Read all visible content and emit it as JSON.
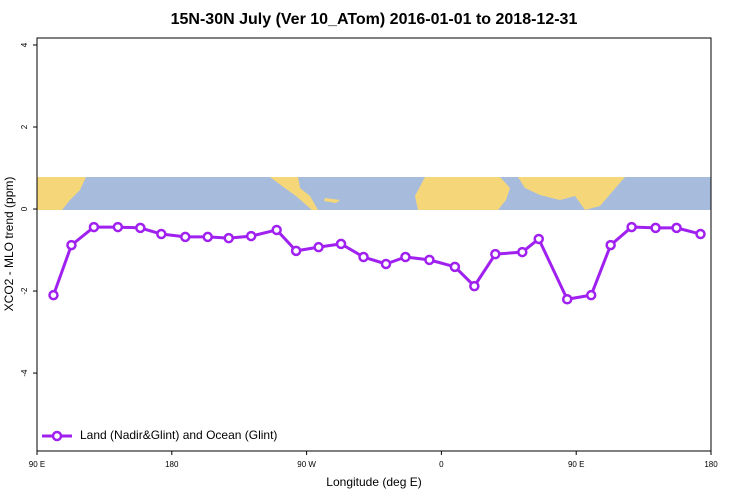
{
  "chart_data": {
    "type": "line",
    "title": "15N-30N July (Ver 10_ATom)   2016-01-01 to 2018-12-31",
    "x_label": "Longitude (deg E)",
    "y_label": "XCO2 - MLO trend (ppm)",
    "xlim": [
      90,
      540
    ],
    "ylim": [
      -5.9,
      4.17
    ],
    "xticks": [
      {
        "value": 90,
        "label": "90 E"
      },
      180,
      {
        "value": 270,
        "label": "90 W"
      },
      {
        "value": 360,
        "label": "0"
      },
      {
        "value": 450,
        "label": "90 E"
      },
      {
        "value": 540,
        "label": "180"
      }
    ],
    "yticks": [
      -4,
      -2,
      0,
      2,
      4
    ],
    "legend": "bottom-left",
    "x": [
      101,
      113,
      128,
      144,
      159,
      173,
      189,
      204,
      218,
      233,
      250,
      263,
      278,
      293,
      308,
      323,
      336,
      352,
      369,
      382,
      396,
      414,
      425,
      444,
      460,
      473,
      487,
      503,
      517,
      533
    ],
    "series": [
      {
        "name": "Land (Nadir&Glint) and Ocean (Glint)",
        "color": "#a020f0",
        "values": [
          -2.1,
          -0.88,
          -0.44,
          -0.44,
          -0.46,
          -0.61,
          -0.68,
          -0.68,
          -0.71,
          -0.66,
          -0.51,
          -1.02,
          -0.93,
          -0.85,
          -1.17,
          -1.34,
          -1.17,
          -1.24,
          -1.41,
          -1.88,
          -1.1,
          -1.05,
          -0.73,
          -2.2,
          -2.1,
          -0.88,
          -0.44,
          -0.46,
          -0.46,
          -0.61
        ]
      }
    ]
  }
}
